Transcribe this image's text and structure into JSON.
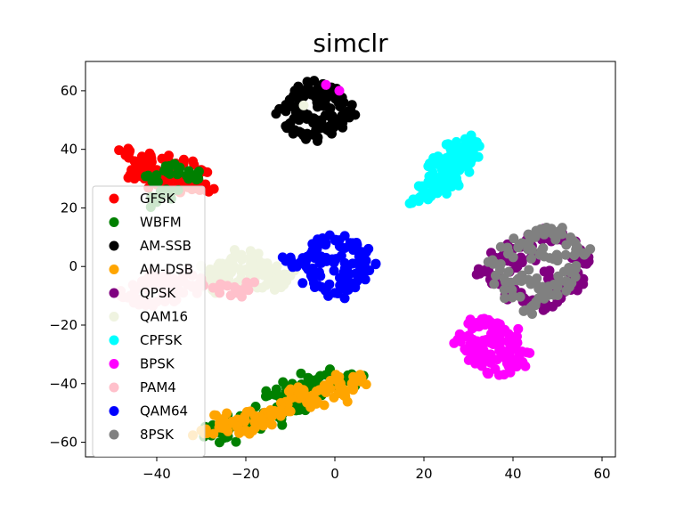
{
  "chart_data": {
    "type": "scatter",
    "title": "simclr",
    "xlabel": "",
    "ylabel": "",
    "xlim": [
      -56,
      63
    ],
    "ylim": [
      -65,
      70
    ],
    "xticks": [
      -40,
      -20,
      0,
      20,
      40,
      60
    ],
    "yticks": [
      -60,
      -40,
      -20,
      0,
      20,
      40,
      60
    ],
    "xtick_labels": [
      "−40",
      "−20",
      "0",
      "20",
      "40",
      "60"
    ],
    "ytick_labels": [
      "−60",
      "−40",
      "−20",
      "0",
      "20",
      "40",
      "60"
    ],
    "grid": false,
    "legend_position": "left",
    "series": [
      {
        "name": "GFSK",
        "color": "#ff0000",
        "clusters": [
          {
            "points": [
              [
                -47,
                38
              ],
              [
                -45,
                36
              ],
              [
                -43,
                34
              ],
              [
                -40,
                33
              ],
              [
                -37,
                32
              ],
              [
                -35,
                31
              ],
              [
                -33,
                30
              ],
              [
                -31,
                28
              ],
              [
                -29,
                26
              ],
              [
                -45,
                30
              ],
              [
                -40,
                28
              ],
              [
                -36,
                26
              ],
              [
                -42,
                37
              ],
              [
                -38,
                36
              ],
              [
                -34,
                35
              ],
              [
                -30,
                33
              ],
              [
                -33,
                27
              ],
              [
                -37,
                30
              ],
              [
                -41,
                31
              ],
              [
                -44,
                33
              ]
            ]
          }
        ]
      },
      {
        "name": "WBFM",
        "color": "#008000",
        "clusters": [
          {
            "points": [
              [
                -38,
                33
              ],
              [
                -35,
                32
              ],
              [
                -41,
                29
              ],
              [
                -37,
                25
              ],
              [
                -40,
                22
              ],
              [
                -32,
                31
              ],
              [
                -36,
                35
              ]
            ]
          },
          {
            "center": [
              -13,
              -47
            ],
            "points": [
              [
                -28,
                -56
              ],
              [
                -25,
                -55
              ],
              [
                -22,
                -53
              ],
              [
                -19,
                -52
              ],
              [
                -16,
                -50
              ],
              [
                -13,
                -48
              ],
              [
                -10,
                -46
              ],
              [
                -7,
                -44
              ],
              [
                -4,
                -42
              ],
              [
                0,
                -40
              ],
              [
                3,
                -39
              ],
              [
                5,
                -38
              ],
              [
                -24,
                -58
              ],
              [
                -18,
                -54
              ],
              [
                -12,
                -52
              ],
              [
                -8,
                -49
              ],
              [
                -15,
                -44
              ],
              [
                -10,
                -41
              ],
              [
                -6,
                -38
              ],
              [
                -2,
                -37
              ]
            ]
          }
        ]
      },
      {
        "name": "AM-SSB",
        "color": "#000000",
        "clusters": [
          {
            "center": [
              -5,
              54
            ],
            "points": [
              [
                -9,
                60
              ],
              [
                -6,
                62
              ],
              [
                -3,
                61
              ],
              [
                0,
                59
              ],
              [
                2,
                56
              ],
              [
                3,
                53
              ],
              [
                1,
                50
              ],
              [
                -2,
                47
              ],
              [
                -5,
                45
              ],
              [
                -8,
                46
              ],
              [
                -10,
                49
              ],
              [
                -11,
                53
              ],
              [
                -10,
                57
              ],
              [
                -7,
                58
              ],
              [
                -4,
                56
              ],
              [
                -1,
                54
              ],
              [
                -6,
                51
              ],
              [
                -3,
                50
              ],
              [
                -8,
                53
              ],
              [
                0,
                48
              ]
            ]
          }
        ]
      },
      {
        "name": "AM-DSB",
        "color": "#ffa500",
        "clusters": [
          {
            "points": [
              [
                -30,
                -56
              ],
              [
                -26,
                -55
              ],
              [
                -22,
                -54
              ],
              [
                -18,
                -51
              ],
              [
                -14,
                -50
              ],
              [
                -11,
                -47
              ],
              [
                -8,
                -45
              ],
              [
                -5,
                -44
              ],
              [
                -2,
                -43
              ],
              [
                1,
                -41
              ],
              [
                4,
                -40
              ],
              [
                6,
                -38
              ],
              [
                -20,
                -56
              ],
              [
                -16,
                -53
              ],
              [
                -12,
                -49
              ],
              [
                -9,
                -43
              ],
              [
                -4,
                -46
              ],
              [
                -1,
                -39
              ],
              [
                2,
                -44
              ],
              [
                -25,
                -52
              ]
            ]
          }
        ]
      },
      {
        "name": "QPSK",
        "color": "#800080",
        "clusters": [
          {
            "center": [
              45,
              0
            ],
            "points": [
              [
                34,
                -1
              ],
              [
                37,
                3
              ],
              [
                40,
                6
              ],
              [
                43,
                9
              ],
              [
                46,
                11
              ],
              [
                49,
                10
              ],
              [
                52,
                8
              ],
              [
                55,
                5
              ],
              [
                56,
                1
              ],
              [
                55,
                -4
              ],
              [
                53,
                -8
              ],
              [
                50,
                -11
              ],
              [
                47,
                -13
              ],
              [
                43,
                -12
              ],
              [
                40,
                -9
              ],
              [
                37,
                -6
              ],
              [
                35,
                -3
              ],
              [
                41,
                0
              ],
              [
                44,
                3
              ],
              [
                48,
                -3
              ]
            ]
          }
        ]
      },
      {
        "name": "QAM16",
        "color": "#eff3e0",
        "clusters": [
          {
            "center": [
              -21,
              -2
            ],
            "points": [
              [
                -29,
                -6
              ],
              [
                -27,
                -3
              ],
              [
                -25,
                0
              ],
              [
                -23,
                2
              ],
              [
                -21,
                4
              ],
              [
                -19,
                3
              ],
              [
                -17,
                1
              ],
              [
                -15,
                -1
              ],
              [
                -13,
                -2
              ],
              [
                -12,
                -4
              ],
              [
                -26,
                -7
              ],
              [
                -22,
                -6
              ],
              [
                -18,
                -5
              ],
              [
                -14,
                -6
              ],
              [
                -24,
                -2
              ],
              [
                -20,
                -1
              ],
              [
                -16,
                -3
              ],
              [
                -28,
                -1
              ],
              [
                -19,
                -4
              ],
              [
                -11,
                -3
              ]
            ]
          },
          {
            "points": [
              [
                -7,
                55
              ]
            ]
          }
        ]
      },
      {
        "name": "CPFSK",
        "color": "#00ffff",
        "clusters": [
          {
            "center": [
              25,
              33
            ],
            "points": [
              [
                19,
                23
              ],
              [
                20,
                26
              ],
              [
                21,
                29
              ],
              [
                22,
                32
              ],
              [
                23,
                35
              ],
              [
                25,
                37
              ],
              [
                27,
                39
              ],
              [
                29,
                41
              ],
              [
                31,
                43
              ],
              [
                23,
                30
              ],
              [
                25,
                32
              ],
              [
                27,
                35
              ],
              [
                29,
                38
              ],
              [
                26,
                29
              ],
              [
                24,
                27
              ],
              [
                21,
                24
              ],
              [
                28,
                33
              ],
              [
                30,
                36
              ],
              [
                22,
                36
              ],
              [
                26,
                40
              ]
            ]
          }
        ]
      },
      {
        "name": "BPSK",
        "color": "#ff00ff",
        "clusters": [
          {
            "center": [
              36,
              -28
            ],
            "points": [
              [
                29,
                -24
              ],
              [
                31,
                -20
              ],
              [
                33,
                -18
              ],
              [
                35,
                -19
              ],
              [
                37,
                -21
              ],
              [
                39,
                -23
              ],
              [
                41,
                -26
              ],
              [
                42,
                -29
              ],
              [
                41,
                -32
              ],
              [
                39,
                -34
              ],
              [
                36,
                -35
              ],
              [
                33,
                -34
              ],
              [
                31,
                -31
              ],
              [
                30,
                -28
              ],
              [
                34,
                -25
              ],
              [
                37,
                -27
              ],
              [
                35,
                -30
              ],
              [
                38,
                -31
              ],
              [
                32,
                -27
              ],
              [
                36,
                -23
              ]
            ]
          },
          {
            "points": [
              [
                1,
                60
              ],
              [
                -2,
                62
              ]
            ]
          }
        ]
      },
      {
        "name": "PAM4",
        "color": "#ffc0cb",
        "clusters": [
          {
            "points": [
              [
                -46,
                -10
              ],
              [
                -44,
                -7
              ],
              [
                -42,
                -5
              ],
              [
                -40,
                -3
              ],
              [
                -38,
                -8
              ],
              [
                -36,
                -6
              ],
              [
                -34,
                -3
              ],
              [
                -32,
                -7
              ],
              [
                -30,
                -5
              ],
              [
                -44,
                -13
              ],
              [
                -40,
                -12
              ],
              [
                -36,
                -11
              ],
              [
                -22,
                -9
              ],
              [
                -20,
                -7
              ],
              [
                -26,
                -8
              ]
            ]
          }
        ]
      },
      {
        "name": "QAM64",
        "color": "#0000ff",
        "clusters": [
          {
            "center": [
              1,
              1
            ],
            "points": [
              [
                -10,
                2
              ],
              [
                -8,
                1
              ],
              [
                -6,
                3
              ],
              [
                -4,
                6
              ],
              [
                -2,
                8
              ],
              [
                1,
                9
              ],
              [
                4,
                8
              ],
              [
                6,
                5
              ],
              [
                7,
                2
              ],
              [
                6,
                -2
              ],
              [
                5,
                -5
              ],
              [
                3,
                -8
              ],
              [
                0,
                -9
              ],
              [
                -3,
                -7
              ],
              [
                -5,
                -4
              ],
              [
                -6,
                -1
              ],
              [
                0,
                2
              ],
              [
                2,
                -2
              ],
              [
                -2,
                3
              ],
              [
                4,
                1
              ]
            ]
          }
        ]
      },
      {
        "name": "8PSK",
        "color": "#808080",
        "clusters": [
          {
            "points": [
              [
                36,
                1
              ],
              [
                39,
                5
              ],
              [
                42,
                8
              ],
              [
                45,
                10
              ],
              [
                48,
                12
              ],
              [
                51,
                11
              ],
              [
                54,
                8
              ],
              [
                56,
                4
              ],
              [
                53,
                -2
              ],
              [
                50,
                -7
              ],
              [
                47,
                -11
              ],
              [
                44,
                -14
              ],
              [
                40,
                -10
              ],
              [
                38,
                -4
              ],
              [
                42,
                -3
              ],
              [
                46,
                4
              ],
              [
                50,
                2
              ],
              [
                52,
                -5
              ],
              [
                44,
                -6
              ],
              [
                48,
                -9
              ]
            ]
          }
        ]
      }
    ]
  }
}
